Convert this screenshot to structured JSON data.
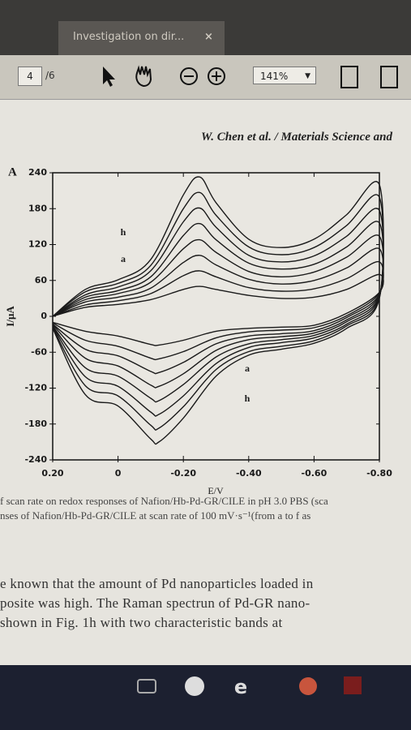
{
  "viewer": {
    "tab_title": "Investigation on dir...",
    "close": "×",
    "page": "4",
    "page_total": "/6",
    "zoom": "141%"
  },
  "document": {
    "running_header": "W. Chen et al. / Materials Science and",
    "caption": [
      "f scan rate on redox responses of Nafion/Hb-Pd-GR/CILE in pH 3.0 PBS (sca",
      "nses of Nafion/Hb-Pd-GR/CILE at scan rate of 100 mV·s⁻¹(from a to f as"
    ],
    "body": [
      "e known that the amount of Pd nanoparticles loaded in",
      "posite was high. The Raman spectrun of Pd-GR nano-",
      "shown in Fig. 1h with two characteristic bands at"
    ]
  },
  "chart_data": {
    "type": "line",
    "panel": "A",
    "x_label": "E/V",
    "y_label": "I/μA",
    "annotations": [
      "h",
      "a",
      "a",
      "h"
    ],
    "color": "#1a1a1a",
    "xlim": [
      0.2,
      -0.8
    ],
    "xticks": [
      {
        "value": 0.2,
        "label": "0.20"
      },
      0,
      {
        "value": -0.2,
        "label": "-0.20"
      },
      {
        "value": -0.4,
        "label": "-0.40"
      },
      {
        "value": -0.6,
        "label": "-0.60"
      },
      {
        "value": -0.8,
        "label": "-0.80"
      }
    ],
    "ylim": [
      -240,
      240
    ],
    "yticks": [
      -240,
      -180,
      -120,
      -60,
      0,
      60,
      120,
      180,
      240
    ],
    "x": [
      0.2,
      0.1,
      0,
      -0.1,
      -0.2,
      -0.25,
      -0.3,
      -0.4,
      -0.5,
      -0.6,
      -0.7,
      -0.8,
      -0.8,
      -0.7,
      -0.6,
      -0.5,
      -0.4,
      -0.3,
      -0.2,
      -0.125,
      -0.1,
      0,
      0.1,
      0.2
    ],
    "series": [
      {
        "values": [
          0,
          15,
          20,
          28,
          45,
          50,
          45,
          35,
          30,
          32,
          45,
          70,
          40,
          5,
          -15,
          -18,
          -20,
          -25,
          -40,
          -48,
          -47,
          -33,
          -25,
          -10
        ]
      },
      {
        "values": [
          0,
          19,
          26,
          38,
          68,
          76,
          66,
          48,
          42,
          46,
          63,
          91,
          39,
          1,
          -19,
          -23,
          -26,
          -36,
          -59,
          -71,
          -70,
          -50,
          -40,
          -11
        ]
      },
      {
        "values": [
          0,
          24,
          32,
          47,
          90,
          102,
          86,
          62,
          54,
          60,
          81,
          113,
          37,
          -2,
          -24,
          -29,
          -33,
          -46,
          -77,
          -94,
          -92,
          -66,
          -55,
          -13
        ]
      },
      {
        "values": [
          0,
          28,
          38,
          57,
          113,
          128,
          107,
          75,
          66,
          74,
          99,
          134,
          36,
          -6,
          -28,
          -34,
          -39,
          -57,
          -96,
          -117,
          -115,
          -83,
          -70,
          -14
        ]
      },
      {
        "values": [
          0,
          32,
          43,
          66,
          135,
          155,
          128,
          89,
          79,
          87,
          116,
          156,
          34,
          -9,
          -32,
          -39,
          -46,
          -68,
          -114,
          -141,
          -137,
          -100,
          -86,
          -16
        ]
      },
      {
        "values": [
          0,
          36,
          49,
          76,
          158,
          181,
          149,
          102,
          91,
          101,
          134,
          177,
          33,
          -13,
          -36,
          -44,
          -52,
          -79,
          -133,
          -164,
          -160,
          -117,
          -101,
          -17
        ]
      },
      {
        "values": [
          0,
          41,
          55,
          85,
          180,
          207,
          169,
          116,
          103,
          115,
          152,
          199,
          31,
          -16,
          -41,
          -50,
          -59,
          -89,
          -151,
          -187,
          -182,
          -133,
          -116,
          -19
        ]
      },
      {
        "values": [
          0,
          45,
          61,
          95,
          203,
          233,
          190,
          129,
          115,
          129,
          170,
          220,
          30,
          -20,
          -45,
          -55,
          -65,
          -100,
          -170,
          -210,
          -205,
          -150,
          -131,
          -20
        ]
      }
    ]
  }
}
